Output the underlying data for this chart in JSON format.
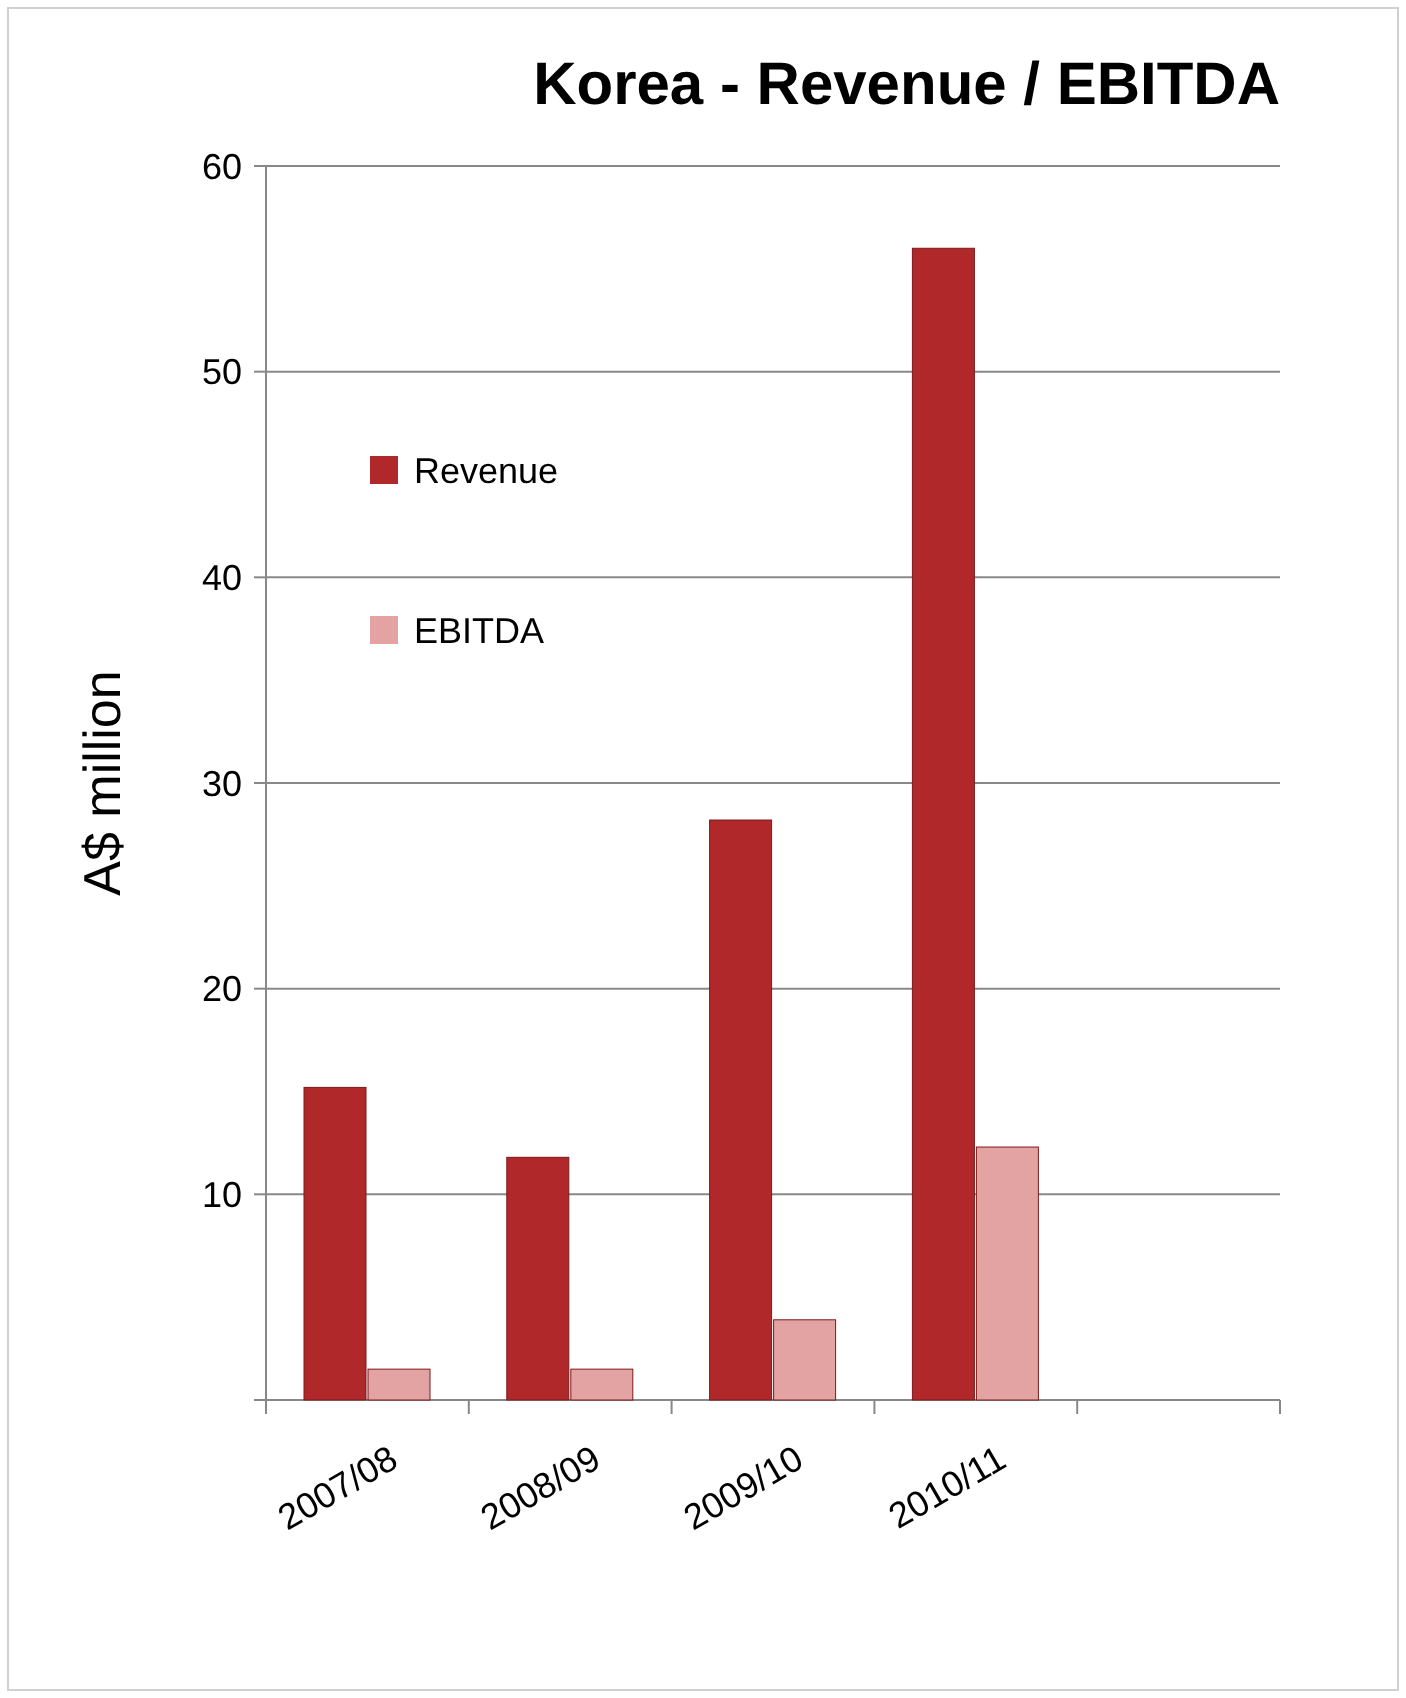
{
  "chart_data": {
    "type": "bar",
    "title": "Korea - Revenue / EBITDA",
    "ylabel": "A$ million",
    "categories": [
      "2007/08",
      "2008/09",
      "2009/10",
      "2010/11",
      null
    ],
    "series": [
      {
        "name": "Revenue",
        "color": "#b0282a",
        "values": [
          15.2,
          11.8,
          28.2,
          56,
          null
        ]
      },
      {
        "name": "EBITDA",
        "color": "#e3a3a3",
        "values": [
          1.5,
          1.5,
          3.9,
          12.3,
          null
        ]
      }
    ],
    "ylim": [
      0,
      60
    ],
    "yticks": [
      {
        "value": 0,
        "label": null
      },
      10,
      20,
      30,
      40,
      50,
      60
    ],
    "grid": "y",
    "legend": "top left"
  }
}
